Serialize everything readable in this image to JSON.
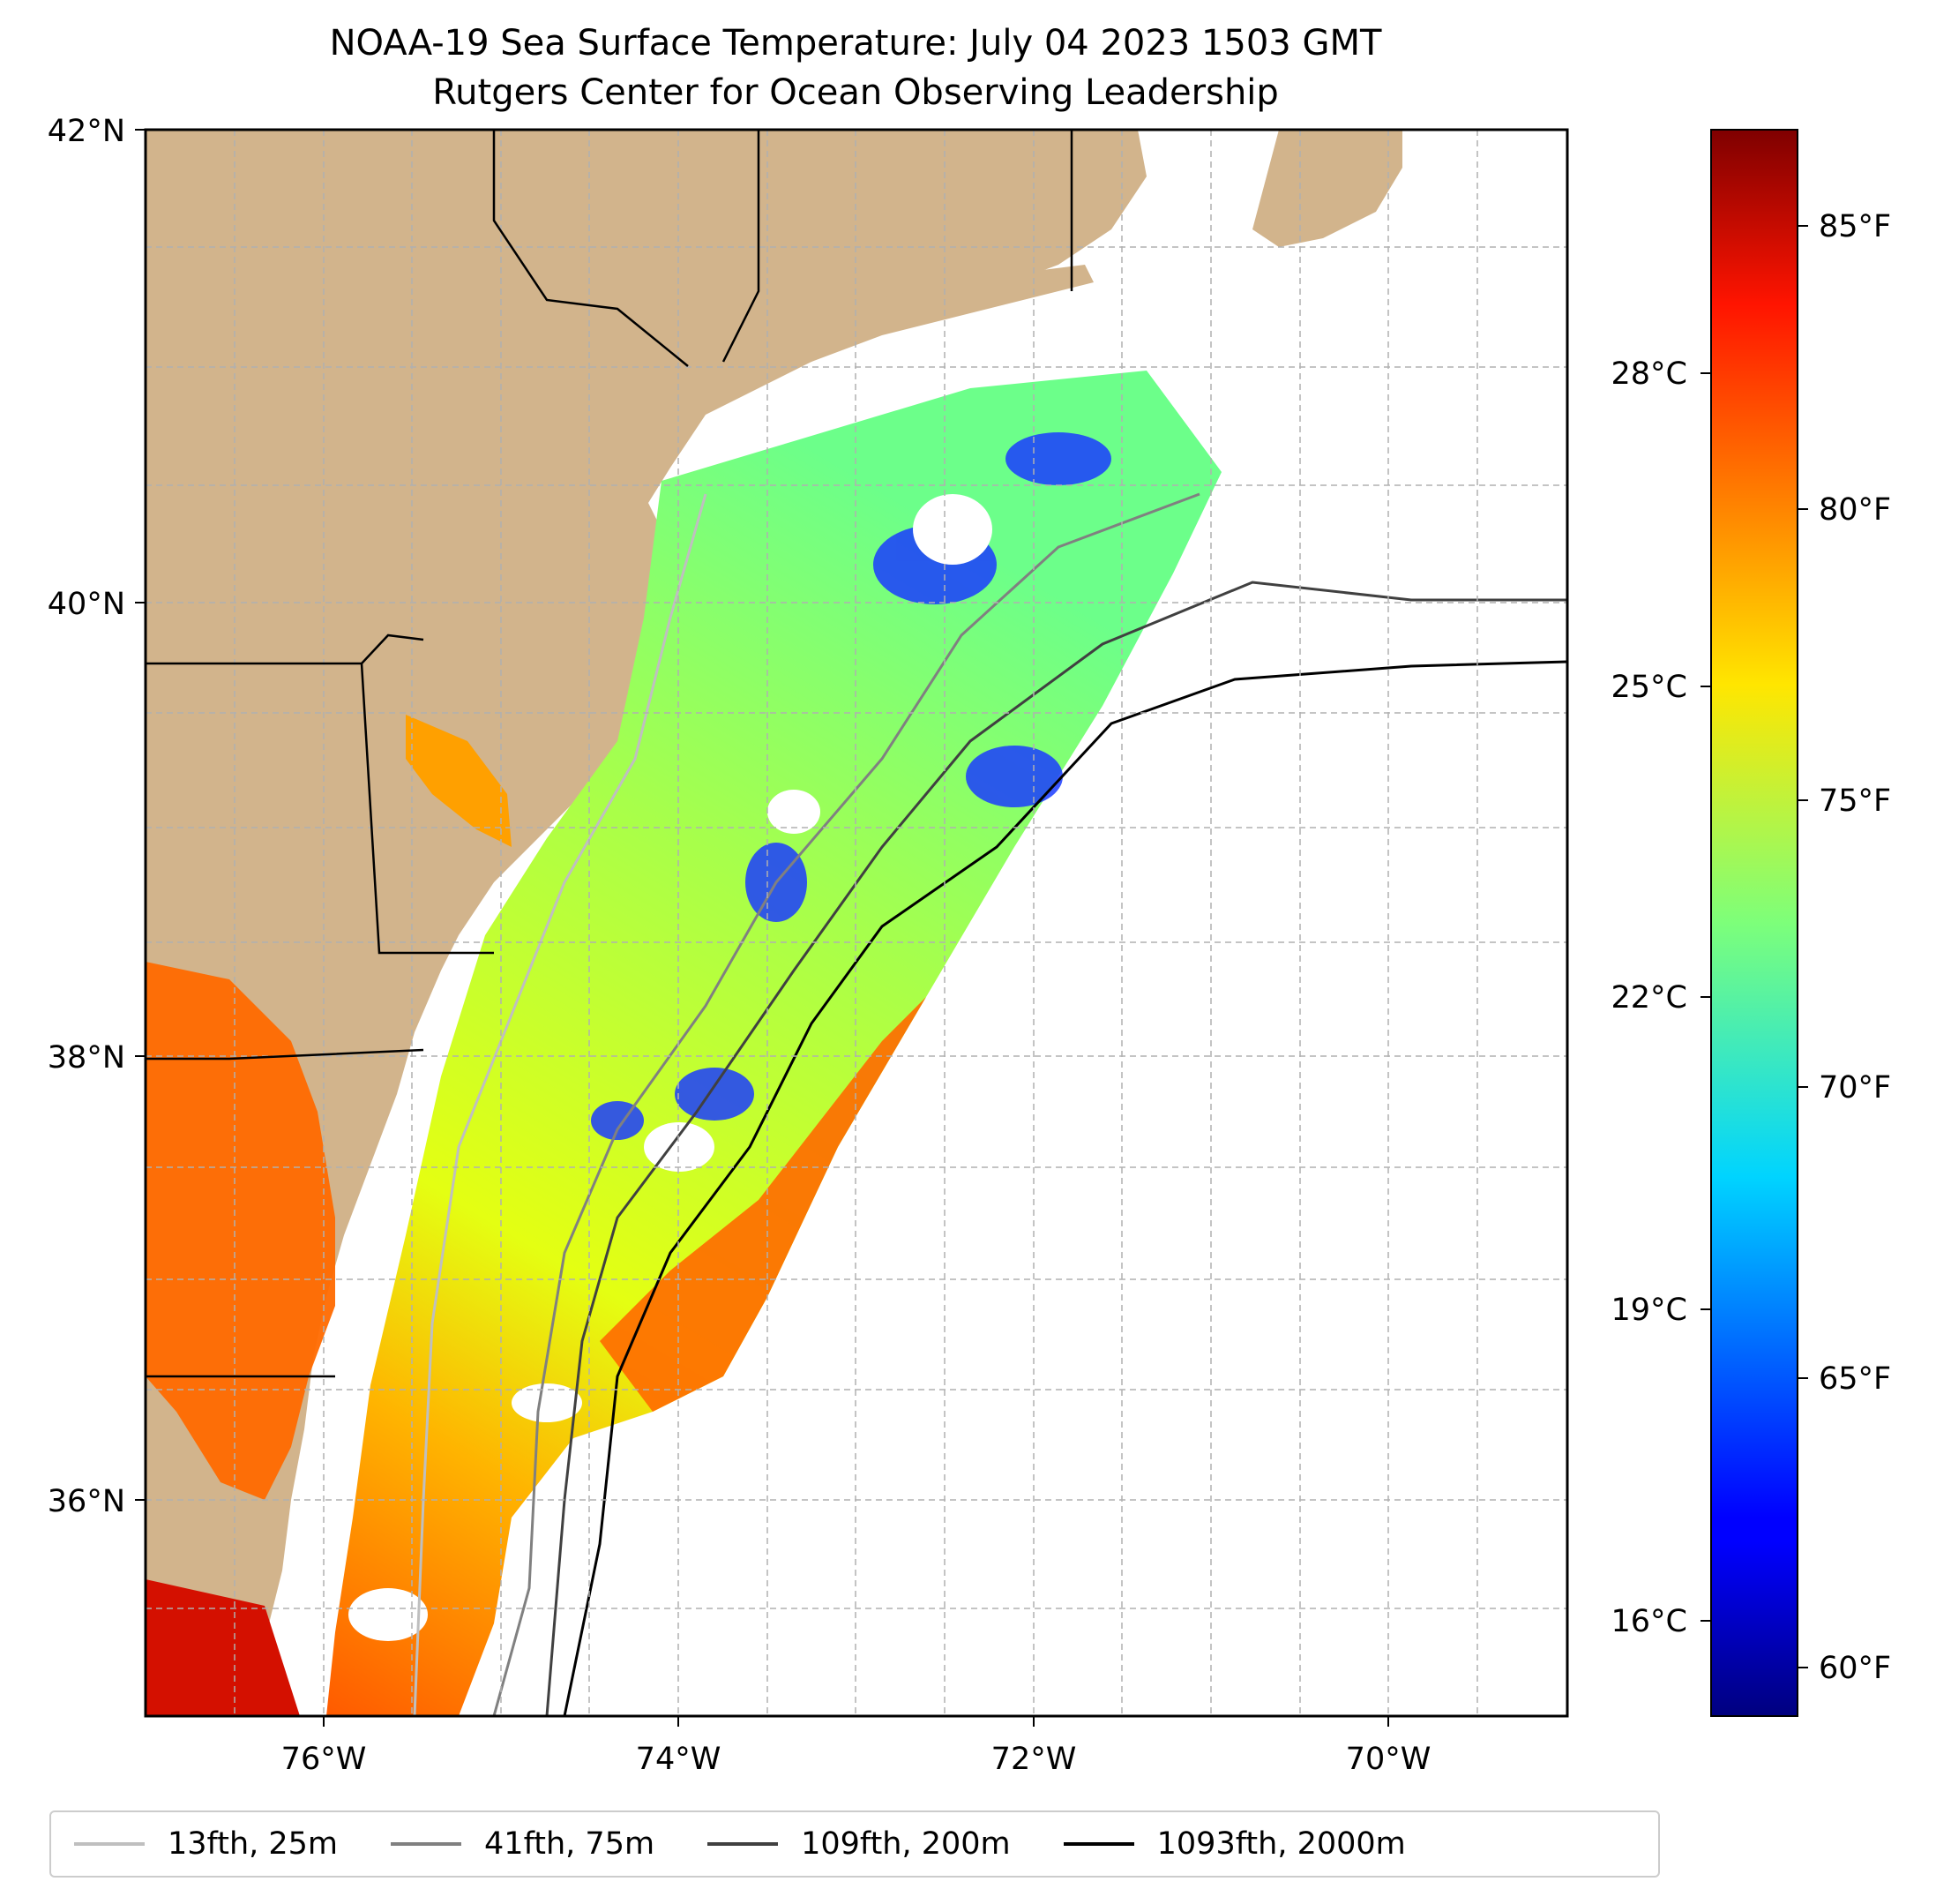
{
  "title_line1": "NOAA-19 Sea Surface Temperature: July 04 2023 1503 GMT",
  "title_line2": "Rutgers Center for Ocean Observing Leadership",
  "map": {
    "lon_range": [
      -77,
      -69
    ],
    "lat_range": [
      35,
      42
    ],
    "lon_ticks": [
      "76°W",
      "74°W",
      "72°W",
      "70°W"
    ],
    "lat_ticks": [
      "42°N",
      "40°N",
      "38°N",
      "36°N"
    ],
    "gridlines": true,
    "land_color": "#d2b48c"
  },
  "colorbar": {
    "colormap": "jet",
    "range_f": [
      59,
      87
    ],
    "fahrenheit_ticks": [
      "85°F",
      "80°F",
      "75°F",
      "70°F",
      "65°F",
      "60°F"
    ],
    "celsius_ticks": [
      "28°C",
      "25°C",
      "22°C",
      "19°C",
      "16°C"
    ]
  },
  "legend": [
    {
      "label": "13fth, 25m",
      "color": "#bfbfbf"
    },
    {
      "label": "41fth, 75m",
      "color": "#808080"
    },
    {
      "label": "109fth, 200m",
      "color": "#404040"
    },
    {
      "label": "1093fth, 2000m",
      "color": "#000000"
    }
  ]
}
